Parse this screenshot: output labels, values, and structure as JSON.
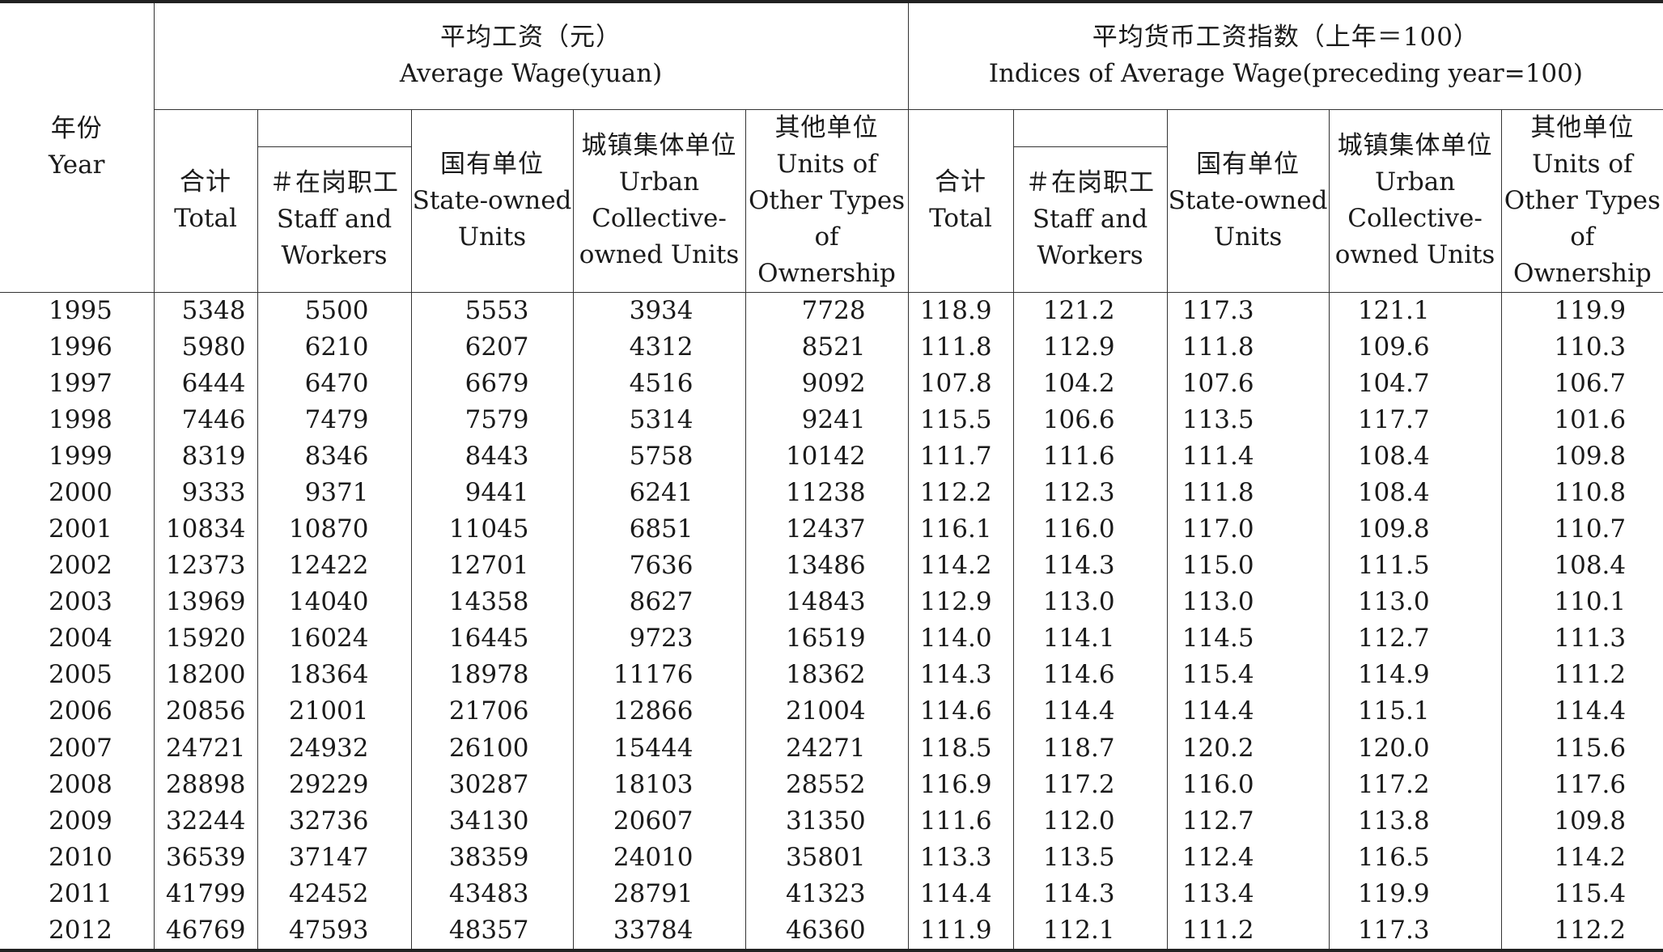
{
  "header": {
    "year": {
      "zh": "年份",
      "en": "Year"
    },
    "avg_wage_group": {
      "zh": "平均工资（元）",
      "en": "Average Wage(yuan)"
    },
    "index_group": {
      "zh": "平均货币工资指数（上年＝100）",
      "en": "Indices of Average Wage(preceding year=100)"
    },
    "staff_group": {
      "zh": "",
      "en": ""
    },
    "columns": [
      {
        "zh": "合计",
        "en": "Total"
      },
      {
        "zh": "＃在岗职工",
        "en": "Staff and Workers"
      },
      {
        "zh": "国有单位",
        "en": "State-owned Units"
      },
      {
        "zh": "城镇集体单位",
        "en": "Urban Collective-owned Units"
      },
      {
        "zh": "其他单位",
        "en": "Units of Other Types of Ownership"
      },
      {
        "zh": "合计",
        "en": "Total"
      },
      {
        "zh": "＃在岗职工",
        "en": "Staff and Workers"
      },
      {
        "zh": "国有单位",
        "en": "State-owned Units"
      },
      {
        "zh": "城镇集体单位",
        "en": "Urban Collective-owned Units"
      },
      {
        "zh": "其他单位",
        "en": "Units of Other Types of Ownership"
      }
    ]
  },
  "rows": [
    [
      "1995",
      "5348",
      "5500",
      "5553",
      "3934",
      "7728",
      "118.9",
      "121.2",
      "117.3",
      "121.1",
      "119.9"
    ],
    [
      "1996",
      "5980",
      "6210",
      "6207",
      "4312",
      "8521",
      "111.8",
      "112.9",
      "111.8",
      "109.6",
      "110.3"
    ],
    [
      "1997",
      "6444",
      "6470",
      "6679",
      "4516",
      "9092",
      "107.8",
      "104.2",
      "107.6",
      "104.7",
      "106.7"
    ],
    [
      "1998",
      "7446",
      "7479",
      "7579",
      "5314",
      "9241",
      "115.5",
      "106.6",
      "113.5",
      "117.7",
      "101.6"
    ],
    [
      "1999",
      "8319",
      "8346",
      "8443",
      "5758",
      "10142",
      "111.7",
      "111.6",
      "111.4",
      "108.4",
      "109.8"
    ],
    [
      "2000",
      "9333",
      "9371",
      "9441",
      "6241",
      "11238",
      "112.2",
      "112.3",
      "111.8",
      "108.4",
      "110.8"
    ],
    [
      "2001",
      "10834",
      "10870",
      "11045",
      "6851",
      "12437",
      "116.1",
      "116.0",
      "117.0",
      "109.8",
      "110.7"
    ],
    [
      "2002",
      "12373",
      "12422",
      "12701",
      "7636",
      "13486",
      "114.2",
      "114.3",
      "115.0",
      "111.5",
      "108.4"
    ],
    [
      "2003",
      "13969",
      "14040",
      "14358",
      "8627",
      "14843",
      "112.9",
      "113.0",
      "113.0",
      "113.0",
      "110.1"
    ],
    [
      "2004",
      "15920",
      "16024",
      "16445",
      "9723",
      "16519",
      "114.0",
      "114.1",
      "114.5",
      "112.7",
      "111.3"
    ],
    [
      "2005",
      "18200",
      "18364",
      "18978",
      "11176",
      "18362",
      "114.3",
      "114.6",
      "115.4",
      "114.9",
      "111.2"
    ],
    [
      "2006",
      "20856",
      "21001",
      "21706",
      "12866",
      "21004",
      "114.6",
      "114.4",
      "114.4",
      "115.1",
      "114.4"
    ],
    [
      "2007",
      "24721",
      "24932",
      "26100",
      "15444",
      "24271",
      "118.5",
      "118.7",
      "120.2",
      "120.0",
      "115.6"
    ],
    [
      "2008",
      "28898",
      "29229",
      "30287",
      "18103",
      "28552",
      "116.9",
      "117.2",
      "116.0",
      "117.2",
      "117.6"
    ],
    [
      "2009",
      "32244",
      "32736",
      "34130",
      "20607",
      "31350",
      "111.6",
      "112.0",
      "112.7",
      "113.8",
      "109.8"
    ],
    [
      "2010",
      "36539",
      "37147",
      "38359",
      "24010",
      "35801",
      "113.3",
      "113.5",
      "112.4",
      "116.5",
      "114.2"
    ],
    [
      "2011",
      "41799",
      "42452",
      "43483",
      "28791",
      "41323",
      "114.4",
      "114.3",
      "113.4",
      "119.9",
      "115.4"
    ],
    [
      "2012",
      "46769",
      "47593",
      "48357",
      "33784",
      "46360",
      "111.9",
      "112.1",
      "111.2",
      "117.3",
      "112.2"
    ]
  ]
}
